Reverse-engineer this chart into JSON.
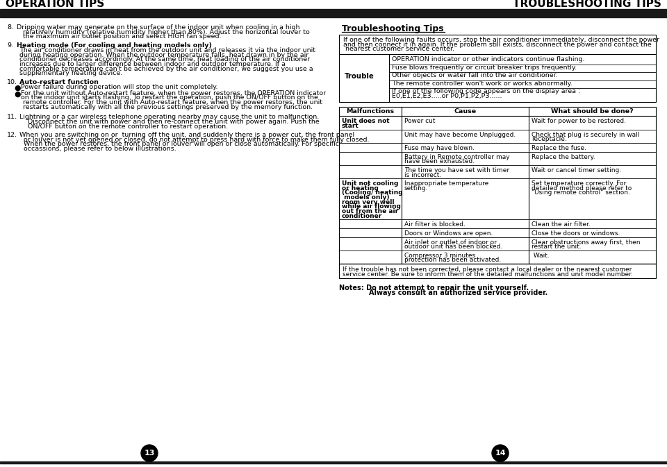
{
  "left_header": "OPERATION TIPS",
  "right_header": "TROUBLESHOOTING TIPS",
  "bg_color": "#ffffff",
  "header_bar_color": "#1a1a1a",
  "troubleshooting_title": "Troubleshooting Tips",
  "trouble_intro_lines": [
    "If one of the following faults occurs, stop the air conditioner immediately, disconnect the power",
    "and then connect it in again. If the problem still exists, disconnect the power and contact the",
    " nearest customer service center."
  ],
  "trouble_items": [
    "OPERATION indicator or other indicators continue flashing.",
    "Fuse blows frequently or circuit breaker trips frequently.",
    "Other objects or water fall into the air conditioner.",
    "The remote controller won't work or works abnormally.",
    "If one of the following code appears on the display area :\nE0,E1,E2,E3.....or P0,P1,P2,P3......"
  ],
  "table_headers": [
    "Malfunctions",
    "Cause",
    "What should be done?"
  ],
  "table_rows": [
    [
      "Unit does not\nstart",
      "Power cut",
      "Wait for power to be restored."
    ],
    [
      "",
      "Unit may have become Unplugged.",
      "Check that plug is securely in wall\nreceptacle."
    ],
    [
      "",
      "Fuse may have blown.",
      "Replace the fuse."
    ],
    [
      "",
      "Battery in Remote controller may\nhave been exhausted.",
      "Replace the battery."
    ],
    [
      "",
      "The time you have set with timer\nis incorrect.",
      "Wait or cancel timer setting."
    ],
    [
      "Unit not cooling\nor heating\n(Cooling/ heating\n models only)\nroom very well\nwhile air flowing\nout from the air\nconditioner",
      "Inappropriate temperature\nsetting.",
      "Set temperature correctly. For\ndetailed method please refer to\n\"Using remote control\" section."
    ],
    [
      "",
      "Air filter is blocked.",
      "Clean the air filter."
    ],
    [
      "",
      "Doors or Windows are open.",
      "Close the doors or windows."
    ],
    [
      "",
      "Air inlet or outlet of indoor or\noutdoor unit has been blocked.",
      "Clear obstructions away first, then\nrestart the unit."
    ],
    [
      "",
      "Compressor 3 minutes\nprotection has been activated.",
      " Wait."
    ]
  ],
  "table_footer_lines": [
    "If the trouble has not been corrected, please contact a local dealer or the nearest customer",
    "service center. Be sure to inform them of the detailed malfunctions and unit model number."
  ],
  "notes_line1": "Notes: Do not attempt to repair the unit yourself.",
  "notes_line2": "        Always consult an authorized service provider.",
  "page_left": "13",
  "page_right": "14"
}
